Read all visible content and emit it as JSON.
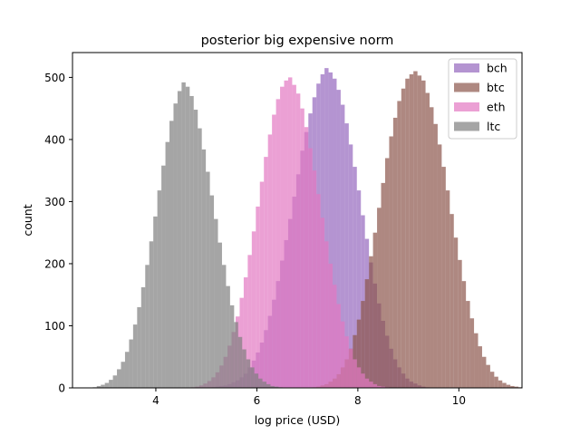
{
  "chart_data": {
    "type": "histogram",
    "title": "posterior big expensive norm",
    "xlabel": "log price (USD)",
    "ylabel": "count",
    "xlim": [
      2.35,
      11.25
    ],
    "ylim": [
      0,
      540
    ],
    "xticks": [
      4,
      6,
      8,
      10
    ],
    "yticks": [
      0,
      100,
      200,
      300,
      400,
      500
    ],
    "grid": false,
    "legend_position": "top-right",
    "bin_width": 0.08,
    "series": [
      {
        "name": "bch",
        "color": "#9467bd",
        "start": 5.1,
        "counts": [
          1,
          2,
          3,
          4,
          6,
          9,
          12,
          17,
          23,
          33,
          44,
          57,
          73,
          93,
          116,
          142,
          172,
          205,
          238,
          272,
          308,
          344,
          382,
          412,
          442,
          468,
          490,
          505,
          515,
          508,
          498,
          480,
          456,
          426,
          392,
          356,
          318,
          278,
          240,
          202,
          168,
          136,
          108,
          84,
          63,
          46,
          33,
          23,
          15,
          10,
          7,
          4,
          2,
          1
        ]
      },
      {
        "name": "btc",
        "color": "#8c564b",
        "start": 7.1,
        "counts": [
          1,
          2,
          4,
          6,
          10,
          15,
          22,
          33,
          46,
          63,
          85,
          110,
          140,
          175,
          212,
          250,
          290,
          330,
          370,
          405,
          435,
          462,
          482,
          498,
          505,
          510,
          503,
          495,
          475,
          452,
          425,
          392,
          356,
          318,
          280,
          242,
          206,
          172,
          140,
          112,
          88,
          67,
          50,
          37,
          26,
          18,
          12,
          8,
          5,
          3,
          2,
          1
        ]
      },
      {
        "name": "eth",
        "color": "#e377c2",
        "start": 4.7,
        "counts": [
          1,
          2,
          4,
          7,
          11,
          17,
          25,
          36,
          50,
          68,
          90,
          115,
          145,
          178,
          214,
          252,
          292,
          332,
          372,
          408,
          440,
          465,
          485,
          495,
          500,
          488,
          474,
          450,
          420,
          386,
          350,
          312,
          274,
          236,
          200,
          166,
          135,
          107,
          83,
          63,
          46,
          33,
          23,
          15,
          10,
          6,
          3,
          2,
          1
        ]
      },
      {
        "name": "ltc",
        "color": "#7f7f7f",
        "start": 2.75,
        "counts": [
          1,
          3,
          5,
          8,
          13,
          20,
          30,
          42,
          58,
          78,
          102,
          130,
          162,
          198,
          236,
          276,
          318,
          358,
          396,
          430,
          458,
          478,
          492,
          485,
          470,
          448,
          418,
          384,
          348,
          310,
          272,
          234,
          198,
          164,
          133,
          106,
          82,
          62,
          46,
          33,
          23,
          15,
          10,
          6,
          3,
          2,
          1
        ]
      }
    ]
  }
}
